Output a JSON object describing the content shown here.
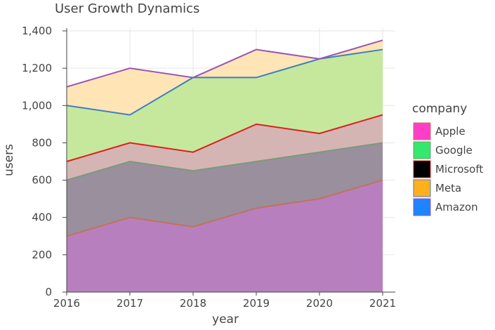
{
  "chart_data": {
    "type": "area",
    "title": "User Growth Dynamics",
    "xlabel": "year",
    "ylabel": "users",
    "x": [
      "2016",
      "2017",
      "2018",
      "2019",
      "2020",
      "2021"
    ],
    "ylim": [
      0,
      1400
    ],
    "y_ticks": [
      "0",
      "200",
      "400",
      "600",
      "800",
      "1,000",
      "1,200",
      "1,400"
    ],
    "y_tick_values": [
      0,
      200,
      400,
      600,
      800,
      1000,
      1200,
      1400
    ],
    "grid": true,
    "legend_title": "company",
    "legend_position": "right",
    "series": [
      {
        "name": "Apple",
        "values": [
          300,
          400,
          350,
          450,
          500,
          600
        ],
        "legend_color": "#ff3ec8",
        "fill": "#b87fbf",
        "line": "#c0735a"
      },
      {
        "name": "Google",
        "values": [
          600,
          700,
          650,
          700,
          750,
          800
        ],
        "legend_color": "#33e86a",
        "fill": "#9a8f9d",
        "line": "#7a9a7c"
      },
      {
        "name": "Microsoft",
        "values": [
          700,
          800,
          750,
          900,
          850,
          950
        ],
        "legend_color": "#000000",
        "fill": "#d5b5b3",
        "line": "#dd1f1f"
      },
      {
        "name": "Meta",
        "values": [
          1000,
          950,
          1150,
          1150,
          1250,
          1300
        ],
        "legend_color": "#ffb01c",
        "fill": "#c6e89d",
        "line": "#3f7ec2"
      },
      {
        "name": "Amazon",
        "values": [
          1100,
          1200,
          1150,
          1300,
          1250,
          1350
        ],
        "legend_color": "#1f84ff",
        "fill": "#ffe5b5",
        "line": "#9a55b4"
      }
    ]
  }
}
